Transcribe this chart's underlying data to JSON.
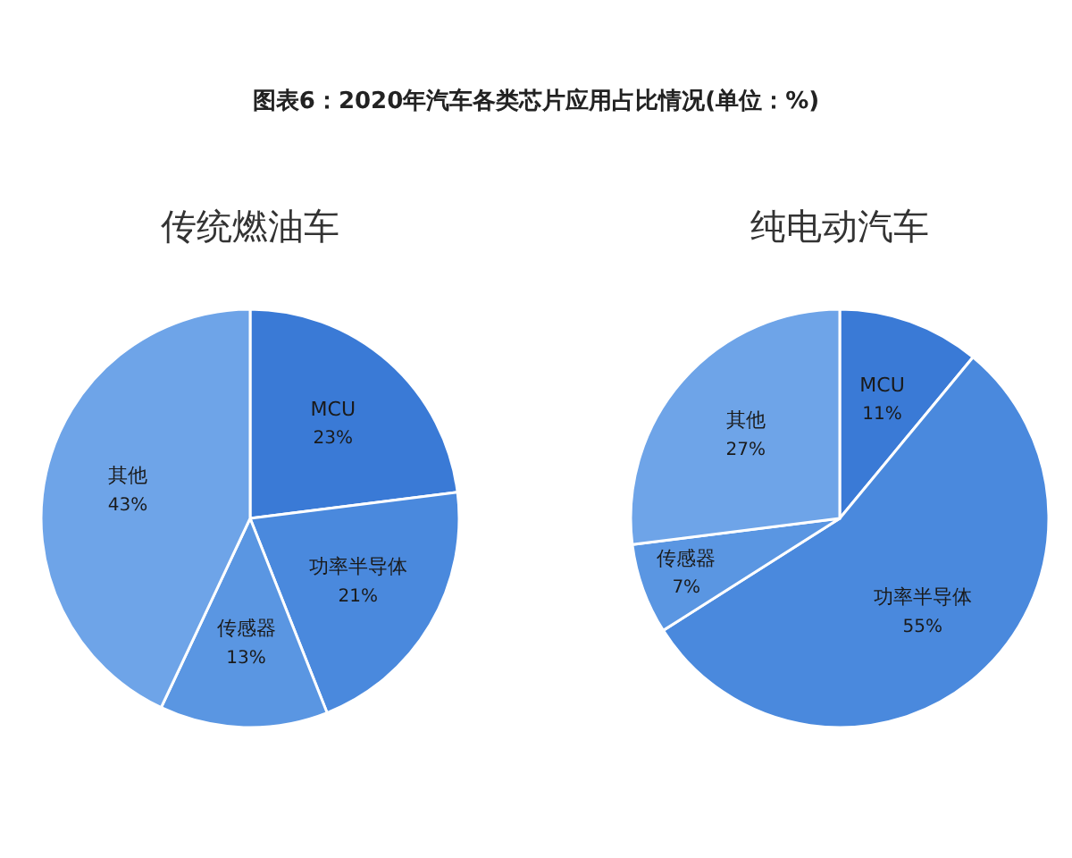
{
  "chart_data": [
    {
      "type": "pie",
      "title": "传统燃油车",
      "annotations": [
        "图表6：2020年汽车各类芯片应用占比情况(单位：%)"
      ],
      "categories": [
        "MCU",
        "功率半导体",
        "传感器",
        "其他"
      ],
      "values": [
        23,
        21,
        13,
        43
      ],
      "colors": [
        "#3a7ad6",
        "#4a89dd",
        "#5a96e2",
        "#6ea4e8"
      ],
      "value_labels": [
        "23%",
        "21%",
        "13%",
        "43%"
      ]
    },
    {
      "type": "pie",
      "title": "纯电动汽车",
      "categories": [
        "MCU",
        "功率半导体",
        "传感器",
        "其他"
      ],
      "values": [
        11,
        55,
        7,
        27
      ],
      "colors": [
        "#3a7ad6",
        "#4a89dd",
        "#5a96e2",
        "#6ea4e8"
      ],
      "value_labels": [
        "11%",
        "55%",
        "7%",
        "27%"
      ]
    }
  ]
}
